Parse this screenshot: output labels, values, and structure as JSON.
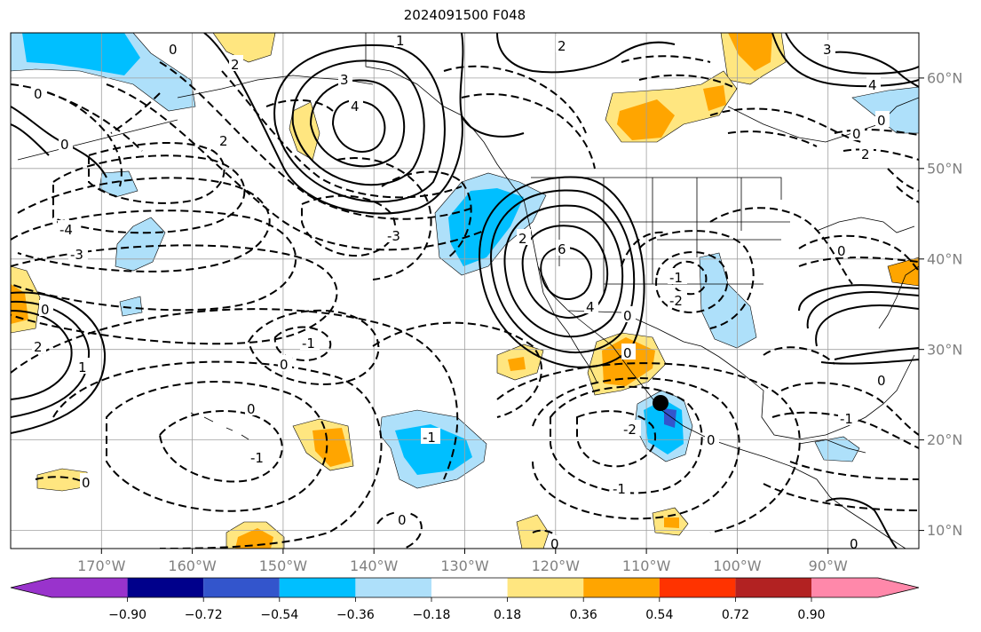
{
  "title": "2024091500 F048",
  "map": {
    "lon_labels": [
      "170°W",
      "160°W",
      "150°W",
      "140°W",
      "130°W",
      "120°W",
      "110°W",
      "100°W",
      "90°W"
    ],
    "lat_labels": [
      "60°N",
      "50°N",
      "40°N",
      "30°N",
      "20°N",
      "10°N"
    ],
    "lon_range": [
      "180°W",
      "80°W"
    ],
    "lat_range": [
      "8°N",
      "65°N"
    ],
    "contour_labels": [
      "1",
      "2",
      "3",
      "4",
      "6",
      "0",
      "-1",
      "-2",
      "-3",
      "-4"
    ],
    "marker": "black-dot",
    "colors": {
      "contour": "#000000",
      "grid": "#a0a0a0",
      "coast": "#000000"
    }
  },
  "colorbar": {
    "tick_labels": [
      "−0.90",
      "−0.72",
      "−0.54",
      "−0.36",
      "−0.18",
      "0.18",
      "0.36",
      "0.54",
      "0.72",
      "0.90"
    ],
    "colors": [
      "#9933cc",
      "#00008b",
      "#3355cc",
      "#00bfff",
      "#aee0fa",
      "#ffffff",
      "#ffe680",
      "#ffa500",
      "#ff3300",
      "#b22222",
      "#ff88aa"
    ],
    "extend": "both"
  }
}
